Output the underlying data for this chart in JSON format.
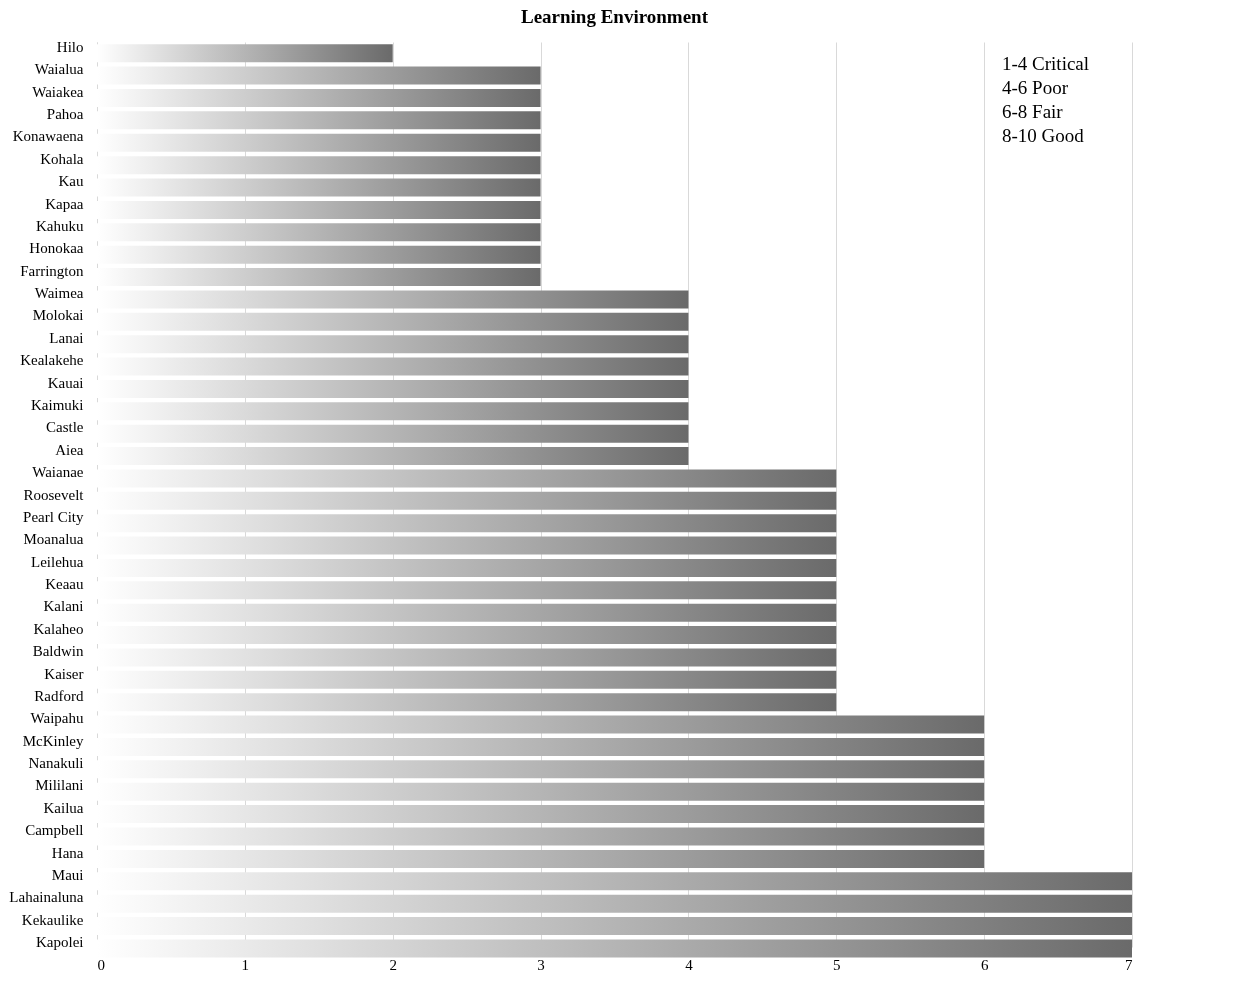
{
  "chart_data": {
    "type": "bar",
    "orientation": "horizontal",
    "title": "Learning Environment",
    "categories": [
      "Hilo",
      "Waialua",
      "Waiakea",
      "Pahoa",
      "Konawaena",
      "Kohala",
      "Kau",
      "Kapaa",
      "Kahuku",
      "Honokaa",
      "Farrington",
      "Waimea",
      "Molokai",
      "Lanai",
      "Kealakehe",
      "Kauai",
      "Kaimuki",
      "Castle",
      "Aiea",
      "Waianae",
      "Roosevelt",
      "Pearl City",
      "Moanalua",
      "Leilehua",
      "Keaau",
      "Kalani",
      "Kalaheo",
      "Baldwin",
      "Kaiser",
      "Radford",
      "Waipahu",
      "McKinley",
      "Nanakuli",
      "Mililani",
      "Kailua",
      "Campbell",
      "Hana",
      "Maui",
      "Lahainaluna",
      "Kekaulike",
      "Kapolei"
    ],
    "series": [
      {
        "color": "#6a6a6a",
        "values": [
          2,
          3,
          3,
          3,
          3,
          3,
          3,
          3,
          3,
          3,
          3,
          4,
          4,
          4,
          4,
          4,
          4,
          4,
          4,
          5,
          5,
          5,
          5,
          5,
          5,
          5,
          5,
          5,
          5,
          5,
          6,
          6,
          6,
          6,
          6,
          6,
          6,
          7,
          7,
          7,
          7
        ]
      }
    ],
    "xlim": [
      0,
      7
    ],
    "xticks": [
      0,
      1,
      2,
      3,
      4,
      5,
      6,
      7
    ],
    "grid": "x",
    "annotations": [
      "1-4 Critical",
      "4-6 Poor",
      "6-8 Fair",
      "8-10 Good"
    ]
  }
}
